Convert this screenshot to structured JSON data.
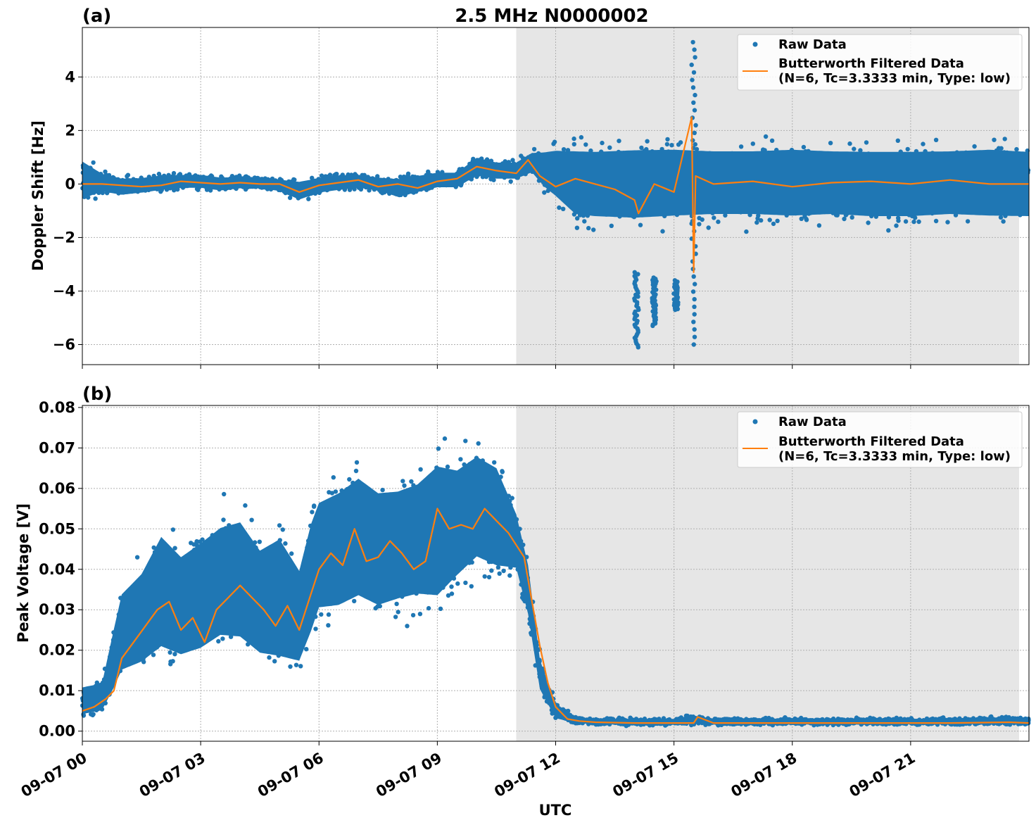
{
  "figure": {
    "title": "2.5 MHz N0000002",
    "xlabel": "UTC",
    "colors": {
      "raw": "#1f77b4",
      "filtered": "#ff7f0e",
      "shade": "#e6e6e6",
      "grid": "#b0b0b0"
    }
  },
  "chart_data": [
    {
      "type": "scatter",
      "panel_label": "(a)",
      "title": "2.5 MHz N0000002",
      "xlabel": "",
      "ylabel": "Doppler Shift [Hz]",
      "xlim_hours": [
        0,
        24
      ],
      "ylim": [
        -6.75,
        5.85
      ],
      "yticks": [
        4,
        2,
        0,
        -2,
        -4,
        -6
      ],
      "ytick_labels": [
        "4",
        "2",
        "0",
        "−2",
        "−4",
        "−6"
      ],
      "grid": true,
      "shaded_region_hours": [
        11,
        23.75
      ],
      "legend": {
        "placement": "top-right",
        "raw_label": "Raw Data",
        "filtered_label_line1": "Butterworth Filtered Data",
        "filtered_label_line2": "(N=6, Tc=3.3333 min, Type: low)"
      },
      "series": [
        {
          "name": "Raw Data",
          "kind": "band",
          "x_hours": [
            0,
            0.5,
            1,
            1.5,
            2,
            2.5,
            3,
            3.5,
            4,
            4.5,
            5,
            5.5,
            6,
            6.5,
            7,
            7.5,
            8,
            8.5,
            9,
            9.5,
            10,
            10.5,
            11,
            11.4,
            11.7,
            12,
            12.5,
            13,
            14,
            15,
            16,
            17,
            18,
            19,
            20,
            21,
            22,
            23,
            24
          ],
          "lower": [
            -1.0,
            -0.5,
            -0.6,
            -0.5,
            -0.4,
            -0.3,
            -0.3,
            -0.4,
            -0.3,
            -0.3,
            -0.4,
            -0.8,
            -0.5,
            -0.4,
            -0.3,
            -0.4,
            -0.7,
            -0.5,
            -0.3,
            -0.3,
            0.1,
            0.0,
            0.0,
            0.2,
            -0.5,
            -1.0,
            -1.9,
            -2.0,
            -2.1,
            -2.0,
            -1.9,
            -1.9,
            -2.0,
            -1.9,
            -2.0,
            -2.0,
            -1.9,
            -2.0,
            -2.0
          ],
          "upper": [
            1.3,
            0.6,
            0.4,
            0.4,
            0.5,
            0.5,
            0.5,
            0.4,
            0.4,
            0.4,
            0.3,
            0.3,
            0.4,
            0.5,
            0.5,
            0.4,
            0.4,
            0.5,
            0.6,
            0.6,
            1.2,
            1.0,
            1.0,
            1.4,
            1.6,
            1.8,
            2.0,
            2.0,
            2.1,
            2.1,
            2.0,
            2.0,
            2.1,
            2.0,
            2.0,
            2.0,
            2.0,
            2.1,
            2.0
          ],
          "spikes": [
            {
              "x_hours": 14.05,
              "min": -6.1,
              "max": -3.3
            },
            {
              "x_hours": 14.5,
              "min": -5.3,
              "max": -3.5
            },
            {
              "x_hours": 15.05,
              "min": -4.7,
              "max": -3.6
            },
            {
              "x_hours": 15.5,
              "min": -6.0,
              "max": 5.3
            }
          ]
        },
        {
          "name": "Butterworth Filtered Data",
          "kind": "line",
          "x_hours": [
            0,
            0.5,
            1,
            1.5,
            2,
            2.5,
            3,
            3.5,
            4,
            4.5,
            5,
            5.5,
            6,
            6.5,
            7,
            7.5,
            8,
            8.5,
            9,
            9.5,
            10,
            10.5,
            11,
            11.3,
            11.6,
            12,
            12.5,
            13,
            13.5,
            14,
            14.1,
            14.5,
            15,
            15.45,
            15.5,
            15.55,
            16,
            17,
            18,
            19,
            20,
            21,
            22,
            23,
            24
          ],
          "values": [
            0.0,
            0.0,
            -0.05,
            -0.1,
            -0.05,
            0.1,
            0.05,
            0.0,
            0.05,
            0.0,
            0.0,
            -0.3,
            -0.05,
            0.05,
            0.15,
            -0.1,
            0.0,
            -0.15,
            0.1,
            0.2,
            0.65,
            0.5,
            0.4,
            0.9,
            0.3,
            -0.1,
            0.2,
            0.0,
            -0.2,
            -0.6,
            -1.1,
            0.0,
            -0.3,
            2.5,
            -3.3,
            0.3,
            0.0,
            0.1,
            -0.1,
            0.05,
            0.1,
            0.0,
            0.15,
            0.0,
            0.0
          ]
        }
      ]
    },
    {
      "type": "scatter",
      "panel_label": "(b)",
      "title": "",
      "xlabel": "UTC",
      "ylabel": "Peak Voltage [V]",
      "xlim_hours": [
        0,
        24
      ],
      "ylim": [
        -0.0025,
        0.0805
      ],
      "yticks": [
        0.08,
        0.07,
        0.06,
        0.05,
        0.04,
        0.03,
        0.02,
        0.01,
        0.0
      ],
      "ytick_labels": [
        "0.08",
        "0.07",
        "0.06",
        "0.05",
        "0.04",
        "0.03",
        "0.02",
        "0.01",
        "0.00"
      ],
      "xticks_hours": [
        0,
        3,
        6,
        9,
        12,
        15,
        18,
        21
      ],
      "xtick_labels": [
        "09-07 00",
        "09-07 03",
        "09-07 06",
        "09-07 09",
        "09-07 12",
        "09-07 15",
        "09-07 18",
        "09-07 21"
      ],
      "grid": true,
      "shaded_region_hours": [
        11,
        23.75
      ],
      "legend": {
        "placement": "top-right",
        "raw_label": "Raw Data",
        "filtered_label_line1": "Butterworth Filtered Data",
        "filtered_label_line2": "(N=6, Tc=3.3333 min, Type: low)"
      },
      "series": [
        {
          "name": "Raw Data",
          "kind": "band",
          "x_hours": [
            0,
            0.5,
            0.8,
            1.0,
            1.5,
            2.0,
            2.5,
            3.0,
            3.5,
            4.0,
            4.5,
            5.0,
            5.5,
            5.8,
            6.0,
            6.5,
            7.0,
            7.5,
            8.0,
            8.5,
            9.0,
            9.5,
            10.0,
            10.5,
            11.0,
            11.3,
            11.6,
            12.0,
            12.5,
            13,
            14,
            15,
            15.5,
            16,
            18,
            20,
            22,
            23.5,
            24
          ],
          "lower": [
            0.002,
            0.003,
            0.006,
            0.009,
            0.01,
            0.012,
            0.011,
            0.012,
            0.015,
            0.014,
            0.011,
            0.009,
            0.01,
            0.016,
            0.022,
            0.022,
            0.024,
            0.022,
            0.024,
            0.025,
            0.023,
            0.03,
            0.035,
            0.033,
            0.036,
            0.025,
            0.008,
            0.002,
            0.0015,
            0.0012,
            0.0012,
            0.0012,
            0.0012,
            0.0012,
            0.0012,
            0.0013,
            0.0012,
            0.0012,
            0.0012
          ],
          "upper": [
            0.013,
            0.014,
            0.03,
            0.04,
            0.046,
            0.057,
            0.051,
            0.055,
            0.059,
            0.061,
            0.053,
            0.057,
            0.047,
            0.06,
            0.065,
            0.068,
            0.072,
            0.068,
            0.068,
            0.07,
            0.076,
            0.073,
            0.076,
            0.073,
            0.058,
            0.045,
            0.02,
            0.008,
            0.004,
            0.0035,
            0.0035,
            0.0035,
            0.0045,
            0.0035,
            0.0035,
            0.0035,
            0.0035,
            0.004,
            0.0035
          ]
        },
        {
          "name": "Butterworth Filtered Data",
          "kind": "line",
          "x_hours": [
            0,
            0.3,
            0.6,
            0.8,
            1.0,
            1.3,
            1.6,
            1.9,
            2.2,
            2.5,
            2.8,
            3.1,
            3.4,
            3.7,
            4.0,
            4.3,
            4.6,
            4.9,
            5.2,
            5.5,
            5.8,
            6.0,
            6.3,
            6.6,
            6.9,
            7.2,
            7.5,
            7.8,
            8.1,
            8.4,
            8.7,
            9.0,
            9.3,
            9.6,
            9.9,
            10.2,
            10.5,
            10.8,
            11.0,
            11.2,
            11.4,
            11.6,
            11.8,
            12.0,
            12.3,
            12.6,
            13,
            14,
            15,
            15.5,
            15.6,
            16,
            18,
            20,
            22,
            23.5,
            24
          ],
          "values": [
            0.005,
            0.006,
            0.008,
            0.01,
            0.018,
            0.022,
            0.026,
            0.03,
            0.032,
            0.025,
            0.028,
            0.022,
            0.03,
            0.033,
            0.036,
            0.033,
            0.03,
            0.026,
            0.031,
            0.025,
            0.034,
            0.04,
            0.044,
            0.041,
            0.05,
            0.042,
            0.043,
            0.047,
            0.044,
            0.04,
            0.042,
            0.055,
            0.05,
            0.051,
            0.05,
            0.055,
            0.052,
            0.049,
            0.046,
            0.043,
            0.032,
            0.021,
            0.012,
            0.006,
            0.003,
            0.0025,
            0.0022,
            0.002,
            0.002,
            0.002,
            0.0035,
            0.002,
            0.002,
            0.002,
            0.002,
            0.0022,
            0.002
          ]
        }
      ]
    }
  ]
}
